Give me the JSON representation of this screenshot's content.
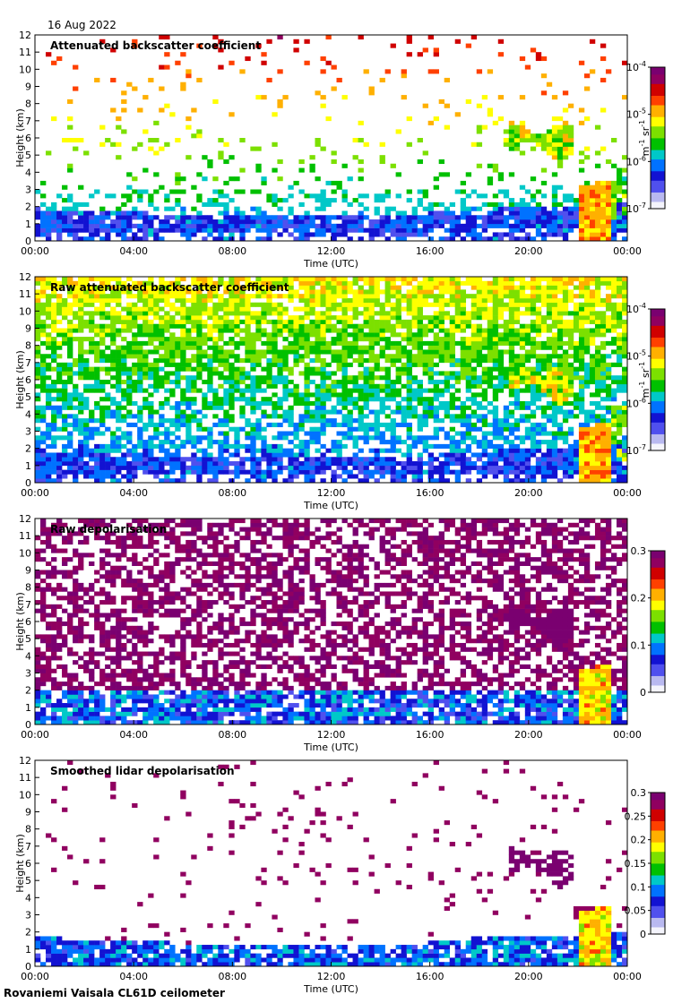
{
  "date": "16 Aug 2022",
  "footer": "Rovaniemi Vaisala CL61D ceilometer",
  "colormap": [
    "#f4f4fc",
    "#b9b9f0",
    "#5050ee",
    "#1212d2",
    "#0072ff",
    "#00c8c8",
    "#00c000",
    "#7ce000",
    "#ffff00",
    "#ffb000",
    "#ff4000",
    "#d00000",
    "#900060",
    "#7a0070"
  ],
  "chart_data": [
    {
      "type": "heatmap",
      "title": "Attenuated backscatter coefficient",
      "xlabel": "Time (UTC)",
      "ylabel": "Height (km)",
      "x_ticks": [
        "00:00",
        "04:00",
        "08:00",
        "12:00",
        "16:00",
        "20:00",
        "00:00"
      ],
      "y_ticks": [
        "0",
        "1",
        "2",
        "3",
        "4",
        "5",
        "6",
        "7",
        "8",
        "9",
        "10",
        "11",
        "12"
      ],
      "ylim": [
        0,
        12
      ],
      "colorbar": {
        "scale": "log",
        "range": [
          1e-07,
          0.0001
        ],
        "ticks": [
          {
            "base": "10",
            "exp": "-7"
          },
          {
            "base": "10",
            "exp": "-6"
          },
          {
            "base": "10",
            "exp": "-5"
          },
          {
            "base": "10",
            "exp": "-4"
          }
        ],
        "unit": {
          "a": "m",
          "a_exp": "-1",
          "b": " sr",
          "b_exp": "-1"
        }
      }
    },
    {
      "type": "heatmap",
      "title": "Raw attenuated backscatter coefficient",
      "xlabel": "Time (UTC)",
      "ylabel": "Height (km)",
      "x_ticks": [
        "00:00",
        "04:00",
        "08:00",
        "12:00",
        "16:00",
        "20:00",
        "00:00"
      ],
      "y_ticks": [
        "0",
        "1",
        "2",
        "3",
        "4",
        "5",
        "6",
        "7",
        "8",
        "9",
        "10",
        "11",
        "12"
      ],
      "ylim": [
        0,
        12
      ],
      "colorbar": {
        "scale": "log",
        "range": [
          1e-07,
          0.0001
        ],
        "ticks": [
          {
            "base": "10",
            "exp": "-7"
          },
          {
            "base": "10",
            "exp": "-6"
          },
          {
            "base": "10",
            "exp": "-5"
          },
          {
            "base": "10",
            "exp": "-4"
          }
        ],
        "unit": {
          "a": "m",
          "a_exp": "-1",
          "b": " sr",
          "b_exp": "-1"
        }
      }
    },
    {
      "type": "heatmap",
      "title": "Raw depolarisation",
      "xlabel": "Time (UTC)",
      "ylabel": "Height (km)",
      "x_ticks": [
        "00:00",
        "04:00",
        "08:00",
        "12:00",
        "16:00",
        "20:00",
        "00:00"
      ],
      "y_ticks": [
        "0",
        "1",
        "2",
        "3",
        "4",
        "5",
        "6",
        "7",
        "8",
        "9",
        "10",
        "11",
        "12"
      ],
      "ylim": [
        0,
        12
      ],
      "colorbar": {
        "scale": "linear",
        "range": [
          0,
          0.3
        ],
        "ticks": [
          "0",
          "0.1",
          "0.2",
          "0.3"
        ]
      }
    },
    {
      "type": "heatmap",
      "title": "Smoothed lidar depolarisation",
      "xlabel": "Time (UTC)",
      "ylabel": "Height (km)",
      "x_ticks": [
        "00:00",
        "04:00",
        "08:00",
        "12:00",
        "16:00",
        "20:00",
        "00:00"
      ],
      "y_ticks": [
        "0",
        "1",
        "2",
        "3",
        "4",
        "5",
        "6",
        "7",
        "8",
        "9",
        "10",
        "11",
        "12"
      ],
      "ylim": [
        0,
        12
      ],
      "colorbar": {
        "scale": "linear",
        "range": [
          0,
          0.3
        ],
        "ticks": [
          "0",
          "0.05",
          "0.1",
          "0.15",
          "0.2",
          "0.25",
          "0.3"
        ]
      }
    }
  ]
}
